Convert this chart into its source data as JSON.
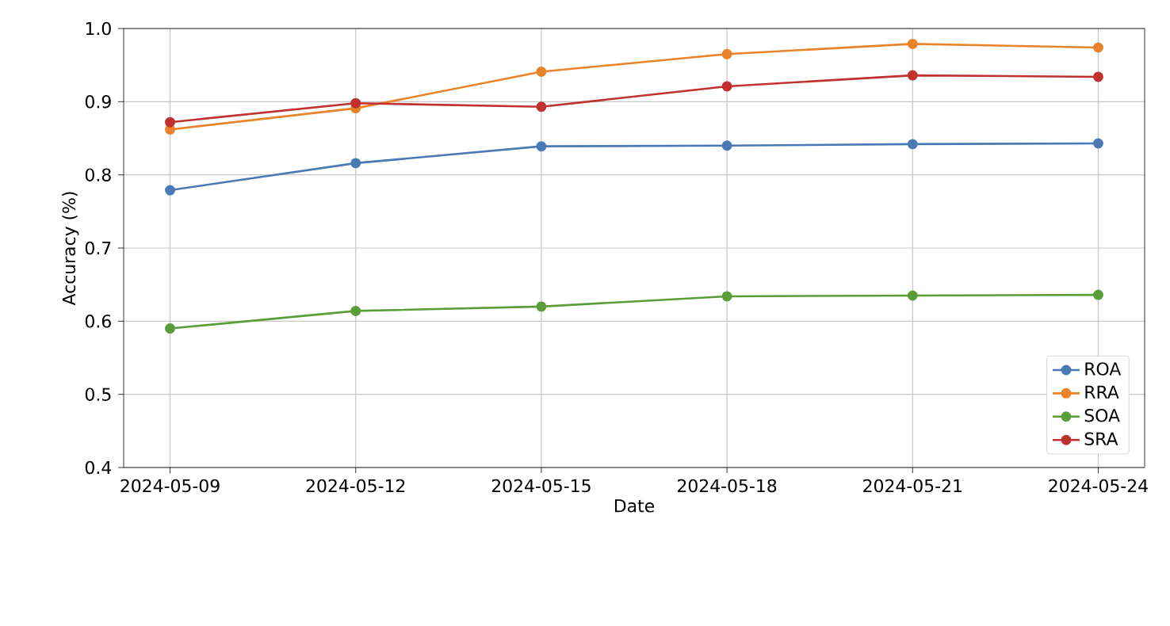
{
  "chart_data": {
    "type": "line",
    "xlabel": "Date",
    "ylabel": "Accuracy (%)",
    "x": [
      "2024-05-09",
      "2024-05-12",
      "2024-05-15",
      "2024-05-18",
      "2024-05-21",
      "2024-05-24"
    ],
    "series": [
      {
        "name": "ROA",
        "color": "#4a7ab5",
        "values": [
          0.779,
          0.816,
          0.839,
          0.84,
          0.842,
          0.843
        ]
      },
      {
        "name": "RRA",
        "color": "#e8832a",
        "values": [
          0.862,
          0.891,
          0.941,
          0.965,
          0.979,
          0.974
        ]
      },
      {
        "name": "SOA",
        "color": "#5a9e3a",
        "values": [
          0.59,
          0.614,
          0.62,
          0.634,
          0.635,
          0.636
        ]
      },
      {
        "name": "SRA",
        "color": "#c0312f",
        "values": [
          0.872,
          0.898,
          0.893,
          0.921,
          0.936,
          0.934
        ]
      }
    ],
    "xlim": [
      "2024-05-08T06:00",
      "2024-05-24T18:00"
    ],
    "xticks": [
      "2024-05-09",
      "2024-05-12",
      "2024-05-15",
      "2024-05-18",
      "2024-05-21",
      "2024-05-24"
    ],
    "ylim": [
      0.4,
      1.0
    ],
    "yticks": [
      0.4,
      0.5,
      0.6,
      0.7,
      0.8,
      0.9,
      {
        "value": 1,
        "label": "1.0"
      }
    ],
    "grid": true,
    "legend": "bottom right",
    "marker": "circle",
    "line_style": "solid"
  }
}
